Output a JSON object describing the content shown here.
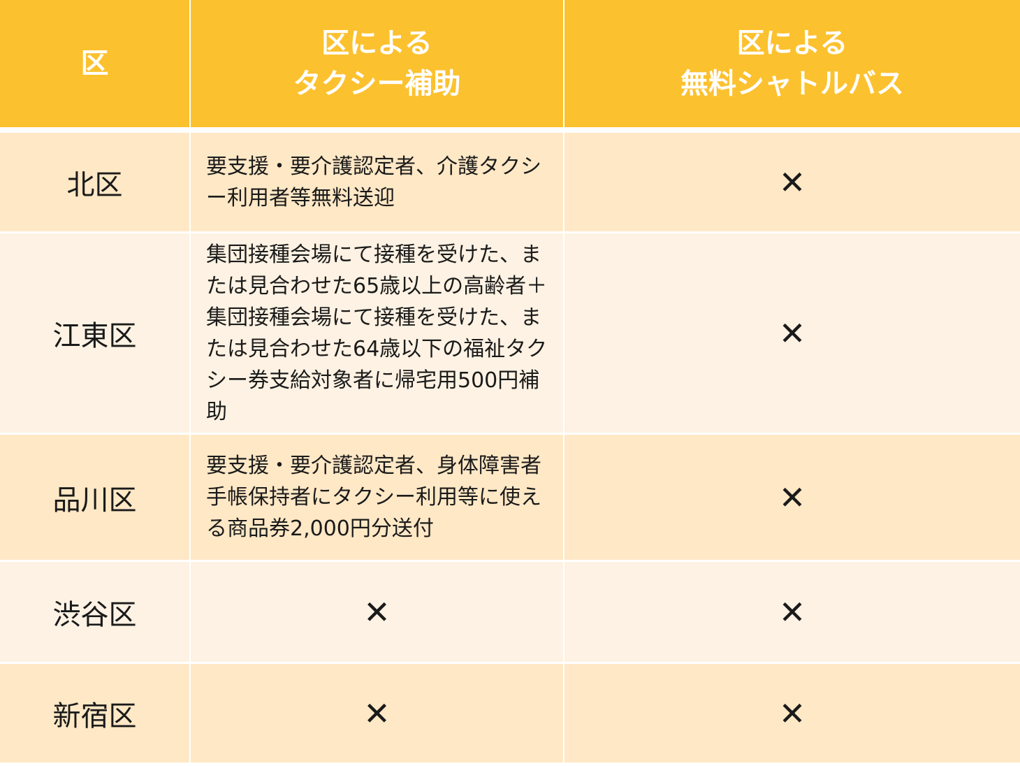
{
  "colors": {
    "header": "#FCC12E",
    "row_dark": "#FFE8C6",
    "row_light": "#FDF2E3"
  },
  "headers": [
    "区",
    "区による\nタクシー補助",
    "区による\n無料シャトルバス"
  ],
  "rows": [
    {
      "ward": "北区",
      "taxi": "要支援・要介護認定者、介護タクシー利用者等無料送迎",
      "shuttle": "✕"
    },
    {
      "ward": "江東区",
      "taxi": "集団接種会場にて接種を受けた、または見合わせた65歳以上の高齢者＋集団接種会場にて接種を受けた、または見合わせた64歳以下の福祉タクシー券支給対象者に帰宅用500円補助",
      "shuttle": "✕"
    },
    {
      "ward": "品川区",
      "taxi": "要支援・要介護認定者、身体障害者手帳保持者にタクシー利用等に使える商品券2,000円分送付",
      "shuttle": "✕"
    },
    {
      "ward": "渋谷区",
      "taxi": "✕",
      "shuttle": "✕"
    },
    {
      "ward": "新宿区",
      "taxi": "✕",
      "shuttle": "✕"
    }
  ]
}
